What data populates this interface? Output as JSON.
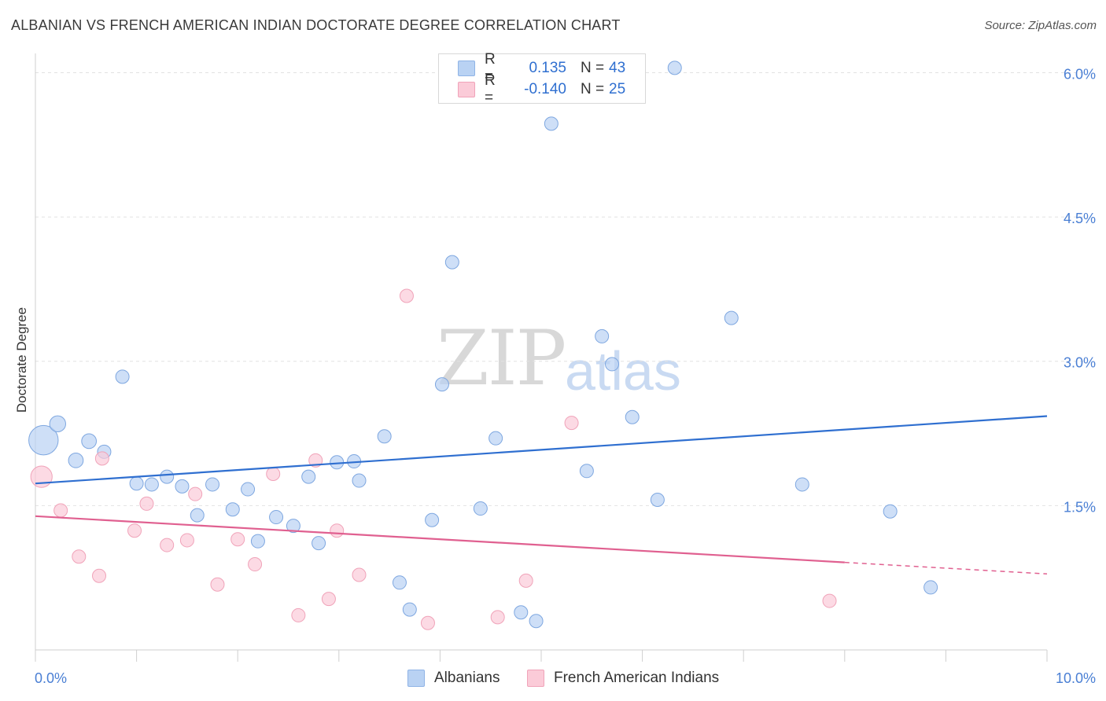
{
  "title": "ALBANIAN VS FRENCH AMERICAN INDIAN DOCTORATE DEGREE CORRELATION CHART",
  "source": "Source: ZipAtlas.com",
  "watermark": {
    "zip": "ZIP",
    "atlas": "atlas"
  },
  "legend": {
    "rows": [
      {
        "r_label": "R =",
        "r_value": "0.135",
        "n_label": "N =",
        "n_value": "43",
        "color": "#b9d2f3",
        "border": "#8fb3e6"
      },
      {
        "r_label": "R =",
        "r_value": "-0.140",
        "n_label": "N =",
        "n_value": "25",
        "color": "#fbcbd8",
        "border": "#f0a3b9"
      }
    ],
    "bottom": [
      "Albanians",
      "French American Indians"
    ]
  },
  "chart_data": {
    "type": "scatter",
    "title": "ALBANIAN VS FRENCH AMERICAN INDIAN DOCTORATE DEGREE CORRELATION CHART",
    "xlabel": "",
    "ylabel": "Doctorate Degree",
    "xlim": [
      0,
      10
    ],
    "ylim": [
      0,
      6.2
    ],
    "x_tick_labels": {
      "left": "0.0%",
      "right": "10.0%"
    },
    "y_ticks": [
      1.5,
      3.0,
      4.5,
      6.0
    ],
    "y_tick_labels": [
      "1.5%",
      "3.0%",
      "4.5%",
      "6.0%"
    ],
    "grid": true,
    "series": [
      {
        "name": "Albanians",
        "color": "#b9d2f3",
        "stroke": "#7ea7e0",
        "line_color": "#2f6fd0",
        "trend": {
          "x0": 0,
          "y0": 1.73,
          "x1": 10,
          "y1": 2.43
        },
        "points": [
          [
            0.08,
            2.18,
            2.2
          ],
          [
            0.22,
            2.35,
            1.2
          ],
          [
            0.4,
            1.97,
            1.1
          ],
          [
            0.53,
            2.17,
            1.1
          ],
          [
            0.68,
            2.06,
            1.0
          ],
          [
            0.86,
            2.84,
            1.0
          ],
          [
            1.0,
            1.73,
            1.0
          ],
          [
            1.15,
            1.72,
            1.0
          ],
          [
            1.3,
            1.8,
            1.0
          ],
          [
            1.45,
            1.7,
            1.0
          ],
          [
            1.6,
            1.4,
            1.0
          ],
          [
            1.75,
            1.72,
            1.0
          ],
          [
            1.95,
            1.46,
            1.0
          ],
          [
            2.1,
            1.67,
            1.0
          ],
          [
            2.2,
            1.13,
            1.0
          ],
          [
            2.38,
            1.38,
            1.0
          ],
          [
            2.55,
            1.29,
            1.0
          ],
          [
            2.7,
            1.8,
            1.0
          ],
          [
            2.8,
            1.11,
            1.0
          ],
          [
            2.98,
            1.95,
            1.0
          ],
          [
            3.15,
            1.96,
            1.0
          ],
          [
            3.2,
            1.76,
            1.0
          ],
          [
            3.45,
            2.22,
            1.0
          ],
          [
            3.6,
            0.7,
            1.0
          ],
          [
            3.7,
            0.42,
            1.0
          ],
          [
            3.92,
            1.35,
            1.0
          ],
          [
            4.02,
            2.76,
            1.0
          ],
          [
            4.12,
            4.03,
            1.0
          ],
          [
            4.4,
            1.47,
            1.0
          ],
          [
            4.55,
            2.2,
            1.0
          ],
          [
            4.8,
            0.39,
            1.0
          ],
          [
            4.95,
            0.3,
            1.0
          ],
          [
            5.1,
            5.47,
            1.0
          ],
          [
            5.45,
            1.86,
            1.0
          ],
          [
            5.6,
            3.26,
            1.0
          ],
          [
            5.7,
            2.97,
            1.0
          ],
          [
            5.9,
            2.42,
            1.0
          ],
          [
            6.15,
            1.56,
            1.0
          ],
          [
            6.32,
            6.05,
            1.0
          ],
          [
            6.88,
            3.45,
            1.0
          ],
          [
            7.58,
            1.72,
            1.0
          ],
          [
            8.45,
            1.44,
            1.0
          ],
          [
            8.85,
            0.65,
            1.0
          ]
        ]
      },
      {
        "name": "French American Indians",
        "color": "#fbcbd8",
        "stroke": "#f0a3b9",
        "line_color": "#e06090",
        "trend": {
          "x0": 0,
          "y0": 1.39,
          "x1": 8.0,
          "y1": 0.91
        },
        "trend_dashed": {
          "x0": 8.0,
          "y0": 0.91,
          "x1": 10,
          "y1": 0.79
        },
        "points": [
          [
            0.06,
            1.8,
            1.6
          ],
          [
            0.25,
            1.45,
            1.0
          ],
          [
            0.43,
            0.97,
            1.0
          ],
          [
            0.63,
            0.77,
            1.0
          ],
          [
            0.66,
            1.99,
            1.0
          ],
          [
            0.98,
            1.24,
            1.0
          ],
          [
            1.1,
            1.52,
            1.0
          ],
          [
            1.3,
            1.09,
            1.0
          ],
          [
            1.5,
            1.14,
            1.0
          ],
          [
            1.58,
            1.62,
            1.0
          ],
          [
            1.8,
            0.68,
            1.0
          ],
          [
            2.0,
            1.15,
            1.0
          ],
          [
            2.17,
            0.89,
            1.0
          ],
          [
            2.35,
            1.83,
            1.0
          ],
          [
            2.6,
            0.36,
            1.0
          ],
          [
            2.77,
            1.97,
            1.0
          ],
          [
            2.9,
            0.53,
            1.0
          ],
          [
            2.98,
            1.24,
            1.0
          ],
          [
            3.2,
            0.78,
            1.0
          ],
          [
            3.67,
            3.68,
            1.0
          ],
          [
            3.88,
            0.28,
            1.0
          ],
          [
            4.57,
            0.34,
            1.0
          ],
          [
            4.85,
            0.72,
            1.0
          ],
          [
            5.3,
            2.36,
            1.0
          ],
          [
            7.85,
            0.51,
            1.0
          ]
        ]
      }
    ]
  }
}
